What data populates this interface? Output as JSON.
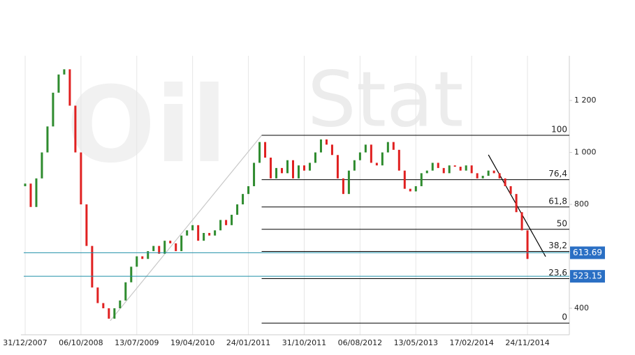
{
  "chart_data": {
    "type": "candlestick",
    "watermark": [
      "Oil",
      "Stat"
    ],
    "x": [
      0,
      4,
      8,
      12,
      16,
      20,
      24,
      28,
      32,
      36,
      40,
      44,
      48,
      52,
      56,
      60,
      64,
      68,
      72,
      76,
      80,
      84,
      88,
      92,
      96,
      100,
      104,
      108,
      112,
      116,
      120,
      124,
      128,
      132,
      136,
      140,
      144,
      148,
      152,
      156,
      160,
      164,
      168,
      172,
      176,
      180,
      184,
      188,
      192,
      196,
      200,
      204,
      208,
      212,
      216,
      220,
      224,
      228,
      232,
      236,
      240,
      244,
      248,
      252,
      256,
      260,
      264,
      268,
      272,
      276,
      280,
      284,
      288,
      292,
      296,
      300,
      304,
      308,
      312,
      316,
      320,
      324,
      328,
      332,
      336,
      340,
      344,
      348,
      352,
      356,
      360
    ],
    "open": [
      870,
      880,
      790,
      900,
      1000,
      1100,
      1230,
      1300,
      1320,
      1180,
      1000,
      800,
      640,
      480,
      420,
      400,
      360,
      400,
      430,
      500,
      560,
      600,
      590,
      620,
      640,
      610,
      660,
      650,
      620,
      680,
      700,
      720,
      660,
      690,
      680,
      700,
      740,
      720,
      760,
      800,
      840,
      870,
      960,
      1040,
      980,
      900,
      940,
      920,
      970,
      900,
      950,
      930,
      960,
      1000,
      1050,
      1030,
      990,
      900,
      840,
      930,
      970,
      1000,
      1030,
      960,
      950,
      1000,
      1040,
      1010,
      930,
      860,
      850,
      870,
      920,
      930,
      960,
      940,
      920,
      950,
      945,
      930,
      950,
      920,
      900,
      910,
      930,
      920,
      900,
      870,
      840,
      770,
      700
    ],
    "close": [
      880,
      790,
      900,
      1000,
      1100,
      1230,
      1300,
      1320,
      1180,
      1000,
      800,
      640,
      480,
      420,
      400,
      360,
      400,
      430,
      500,
      560,
      600,
      590,
      620,
      640,
      610,
      660,
      650,
      620,
      680,
      700,
      720,
      660,
      690,
      680,
      700,
      740,
      720,
      760,
      800,
      840,
      870,
      960,
      1040,
      980,
      900,
      940,
      920,
      970,
      900,
      950,
      930,
      960,
      1000,
      1050,
      1030,
      990,
      900,
      840,
      930,
      970,
      1000,
      1030,
      960,
      950,
      1000,
      1040,
      1010,
      930,
      860,
      850,
      870,
      920,
      930,
      960,
      940,
      920,
      950,
      945,
      930,
      950,
      920,
      900,
      910,
      930,
      920,
      900,
      870,
      840,
      770,
      700,
      590
    ],
    "up_color": "#2e8b2e",
    "down_color": "#e02020",
    "xlim": [
      -3,
      390
    ],
    "xticks": [
      {
        "value": 0,
        "label": "31/12/2007"
      },
      {
        "value": 40,
        "label": "06/10/2008"
      },
      {
        "value": 80,
        "label": "13/07/2009"
      },
      {
        "value": 120,
        "label": "19/04/2010"
      },
      {
        "value": 160,
        "label": "24/01/2011"
      },
      {
        "value": 200,
        "label": "31/10/2011"
      },
      {
        "value": 240,
        "label": "06/08/2012"
      },
      {
        "value": 280,
        "label": "13/05/2013"
      },
      {
        "value": 320,
        "label": "17/02/2014"
      },
      {
        "value": 360,
        "label": "24/11/2014"
      }
    ],
    "ylim": [
      298,
      1372
    ],
    "yticks": [
      400,
      800,
      {
        "value": 1000,
        "label": "1 000"
      },
      {
        "value": 1200,
        "label": "1 200"
      }
    ],
    "grid": true,
    "trend_lines": [
      {
        "x": [
          61,
          169.5
        ],
        "y": [
          352,
          1066
        ],
        "color": "#c8c8c8"
      },
      {
        "x": [
          332,
          373
        ],
        "y": [
          991,
          599
        ],
        "color": "#000000"
      }
    ],
    "fibonacci": [
      {
        "value": 1066,
        "label": "100"
      },
      {
        "value": 895,
        "label": "76,4"
      },
      {
        "value": 790,
        "label": "61,8"
      },
      {
        "value": 704,
        "label": "50"
      },
      {
        "value": 619,
        "label": "38,2"
      },
      {
        "value": 514,
        "label": "23,6"
      },
      {
        "value": 343,
        "label": "0"
      }
    ],
    "price_lines": [
      {
        "value": 613.69,
        "color": "#1f8fa8"
      },
      {
        "value": 523.15,
        "color": "#1f8fa8"
      }
    ],
    "price_label_color": "#2a6fc4"
  }
}
